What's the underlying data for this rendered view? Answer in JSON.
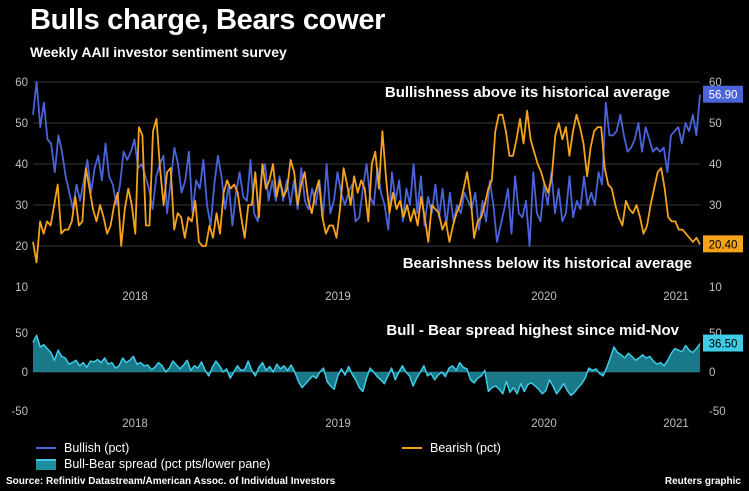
{
  "title": "Bulls charge, Bears cower",
  "subtitle": "Weekly AAII investor sentiment survey",
  "source": "Source: Refinitiv Datastream/American Assoc. of Individual Investors",
  "credit": "Reuters graphic",
  "colors": {
    "bullish": "#4a63d8",
    "bearish": "#f5a31a",
    "spread": "#3ecbe6",
    "spread_fill": "#1f8ea0",
    "grid": "#3a3a3a",
    "axis_text": "#bfbfbf"
  },
  "legend": {
    "bullish": "Bullish (pct)",
    "bearish": "Bearish (pct)",
    "spread": "Bull-Bear spread (pct pts/lower pane)"
  },
  "chart_data": [
    {
      "type": "line",
      "title": "",
      "annotations": [
        "Bullishness above its historical average",
        "Bearishness below its historical average"
      ],
      "x_ticks": [
        "2018",
        "2019",
        "2020",
        "2021"
      ],
      "ylim": [
        10,
        60
      ],
      "y_ticks": [
        10,
        20,
        30,
        40,
        50,
        60
      ],
      "grid": true,
      "end_labels": {
        "bullish": "56.90",
        "bearish": "20.40"
      },
      "series": [
        {
          "name": "Bullish (pct)",
          "key": "bullish",
          "values": [
            52,
            60,
            49,
            55,
            46,
            45,
            38,
            47,
            43,
            37,
            33,
            29,
            35,
            31,
            36,
            41,
            33,
            39,
            42,
            36,
            45,
            37,
            35,
            30,
            35,
            43,
            41,
            43,
            46,
            39,
            40,
            37,
            34,
            29,
            37,
            40,
            42,
            28,
            36,
            44,
            40,
            33,
            36,
            43,
            28,
            36,
            34,
            41,
            30,
            25,
            35,
            42,
            37,
            29,
            35,
            25,
            33,
            38,
            32,
            31,
            41,
            28,
            26,
            37,
            40,
            31,
            36,
            31,
            37,
            31,
            36,
            30,
            36,
            29,
            39,
            31,
            29,
            34,
            30,
            36,
            27,
            40,
            28,
            31,
            38,
            33,
            30,
            33,
            35,
            26,
            27,
            34,
            40,
            32,
            30,
            39,
            33,
            30,
            24,
            38,
            31,
            36,
            26,
            34,
            30,
            40,
            28,
            37,
            25,
            32,
            28,
            35,
            27,
            34,
            25,
            33,
            26,
            30,
            28,
            33,
            31,
            29,
            33,
            24,
            31,
            26,
            36,
            30,
            21,
            25,
            29,
            34,
            23,
            37,
            28,
            27,
            31,
            20,
            38,
            28,
            26,
            35,
            30,
            38,
            28,
            34,
            26,
            28,
            37,
            27,
            31,
            29,
            37,
            30,
            33,
            30,
            38,
            35,
            55,
            47,
            47,
            48,
            52,
            47,
            43,
            44,
            46,
            50,
            43,
            49,
            46,
            43,
            44,
            43,
            44,
            38,
            47,
            48,
            49,
            45,
            50,
            48,
            52,
            47,
            56.9
          ]
        },
        {
          "name": "Bearish (pct)",
          "key": "bearish",
          "values": [
            21,
            16,
            26,
            23,
            26,
            25,
            30,
            35,
            23,
            24,
            24,
            26,
            32,
            25,
            26,
            39,
            34,
            29,
            26,
            30,
            27,
            23,
            25,
            30,
            33,
            20,
            29,
            34,
            30,
            23,
            49,
            47,
            25,
            25,
            48,
            51,
            39,
            30,
            38,
            39,
            24,
            28,
            27,
            22,
            27,
            26,
            31,
            21,
            20,
            20,
            25,
            22,
            28,
            23,
            33,
            36,
            34,
            35,
            33,
            27,
            22,
            30,
            30,
            38,
            27,
            40,
            34,
            36,
            40,
            32,
            36,
            32,
            34,
            41,
            38,
            30,
            35,
            38,
            31,
            28,
            33,
            36,
            27,
            23,
            25,
            25,
            22,
            29,
            39,
            35,
            30,
            37,
            33,
            36,
            34,
            26,
            40,
            43,
            34,
            48,
            37,
            28,
            33,
            29,
            31,
            27,
            30,
            26,
            29,
            25,
            32,
            27,
            21,
            30,
            29,
            28,
            24,
            26,
            21,
            25,
            28,
            30,
            34,
            38,
            32,
            22,
            26,
            27,
            30,
            34,
            36,
            48,
            52,
            52,
            48,
            42,
            42,
            46,
            51,
            45,
            53,
            46,
            43,
            40,
            38,
            35,
            33,
            37,
            47,
            50,
            46,
            49,
            42,
            48,
            52,
            49,
            45,
            37,
            44,
            48,
            49,
            49,
            39,
            35,
            34,
            30,
            27,
            25,
            31,
            29,
            28,
            30,
            27,
            23,
            25,
            30,
            34,
            38,
            39,
            34,
            27,
            26,
            26,
            24,
            24,
            23,
            22,
            21,
            22,
            20.4
          ]
        }
      ]
    },
    {
      "type": "area",
      "title": "",
      "annotations": [
        "Bull - Bear spread highest since mid-Nov"
      ],
      "x_ticks": [
        "2018",
        "2019",
        "2020",
        "2021"
      ],
      "ylim": [
        -50,
        50
      ],
      "y_ticks": [
        -50,
        0,
        50
      ],
      "grid": true,
      "end_labels": {
        "spread": "36.50"
      },
      "series": [
        {
          "name": "Bull-Bear spread (pct pts/lower pane)",
          "key": "spread",
          "values": [
            38,
            47,
            32,
            35,
            30,
            25,
            15,
            28,
            20,
            18,
            10,
            12,
            15,
            8,
            12,
            6,
            14,
            13,
            16,
            12,
            18,
            10,
            12,
            5,
            8,
            18,
            12,
            15,
            20,
            10,
            12,
            8,
            9,
            3,
            6,
            12,
            8,
            0,
            5,
            14,
            9,
            4,
            9,
            15,
            2,
            8,
            5,
            13,
            2,
            -5,
            6,
            14,
            8,
            0,
            4,
            -8,
            0,
            8,
            2,
            3,
            14,
            2,
            -5,
            6,
            12,
            2,
            7,
            0,
            10,
            4,
            8,
            2,
            9,
            0,
            -12,
            -20,
            -15,
            -10,
            -5,
            -8,
            0,
            5,
            -12,
            -18,
            -22,
            -5,
            4,
            -4,
            7,
            -3,
            -10,
            -20,
            -25,
            -8,
            5,
            0,
            -6,
            -10,
            -15,
            -5,
            5,
            -10,
            0,
            8,
            0,
            -5,
            -18,
            -8,
            0,
            8,
            -5,
            -2,
            -10,
            -4,
            0,
            -6,
            5,
            8,
            2,
            12,
            6,
            4,
            -10,
            -14,
            -8,
            -5,
            2,
            -25,
            -20,
            -18,
            -22,
            -28,
            -12,
            -26,
            -20,
            -28,
            -15,
            -25,
            -16,
            -14,
            -18,
            -22,
            -28,
            -24,
            -10,
            -18,
            -28,
            -22,
            -15,
            -24,
            -30,
            -26,
            -20,
            -15,
            -8,
            5,
            2,
            4,
            -2,
            -5,
            6,
            18,
            32,
            25,
            22,
            18,
            24,
            20,
            15,
            18,
            22,
            18,
            20,
            14,
            10,
            12,
            8,
            15,
            24,
            30,
            28,
            26,
            34,
            28,
            25,
            30,
            36.5
          ]
        }
      ]
    }
  ]
}
